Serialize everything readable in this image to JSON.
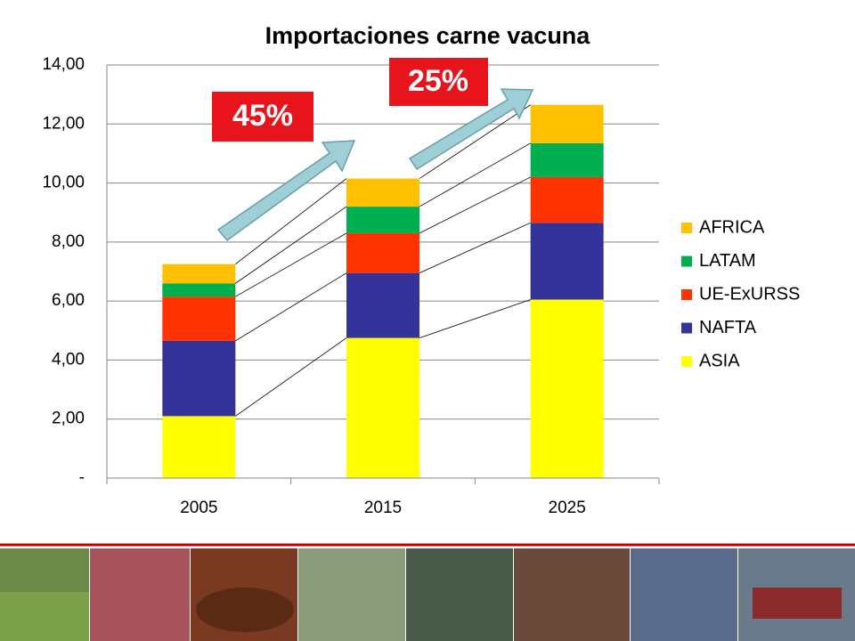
{
  "chart_data": {
    "type": "stacked-bar",
    "title": "Importaciones carne vacuna",
    "categories": [
      "2005",
      "2015",
      "2025"
    ],
    "series": [
      {
        "name": "ASIA",
        "color": "#ffff00",
        "values": [
          2.1,
          4.75,
          6.05
        ]
      },
      {
        "name": "NAFTA",
        "color": "#333399",
        "values": [
          2.55,
          2.2,
          2.6
        ]
      },
      {
        "name": "UE-ExURSS",
        "color": "#ff3300",
        "values": [
          1.5,
          1.35,
          1.55
        ]
      },
      {
        "name": "LATAM",
        "color": "#00b050",
        "values": [
          0.45,
          0.9,
          1.15
        ]
      },
      {
        "name": "AFRICA",
        "color": "#ffc000",
        "values": [
          0.65,
          0.95,
          1.3
        ]
      }
    ],
    "ylim": [
      0,
      14
    ],
    "yticks": [
      {
        "value": 0,
        "label": "-"
      },
      {
        "value": 2,
        "label": "2,00"
      },
      {
        "value": 4,
        "label": "4,00"
      },
      {
        "value": 6,
        "label": "6,00"
      },
      {
        "value": 8,
        "label": "8,00"
      },
      {
        "value": 10,
        "label": "10,00"
      },
      {
        "value": 12,
        "label": "12,00"
      },
      {
        "value": 14,
        "label": "14,00"
      }
    ],
    "grid": true,
    "annotations": [
      "45%",
      "25%"
    ]
  }
}
